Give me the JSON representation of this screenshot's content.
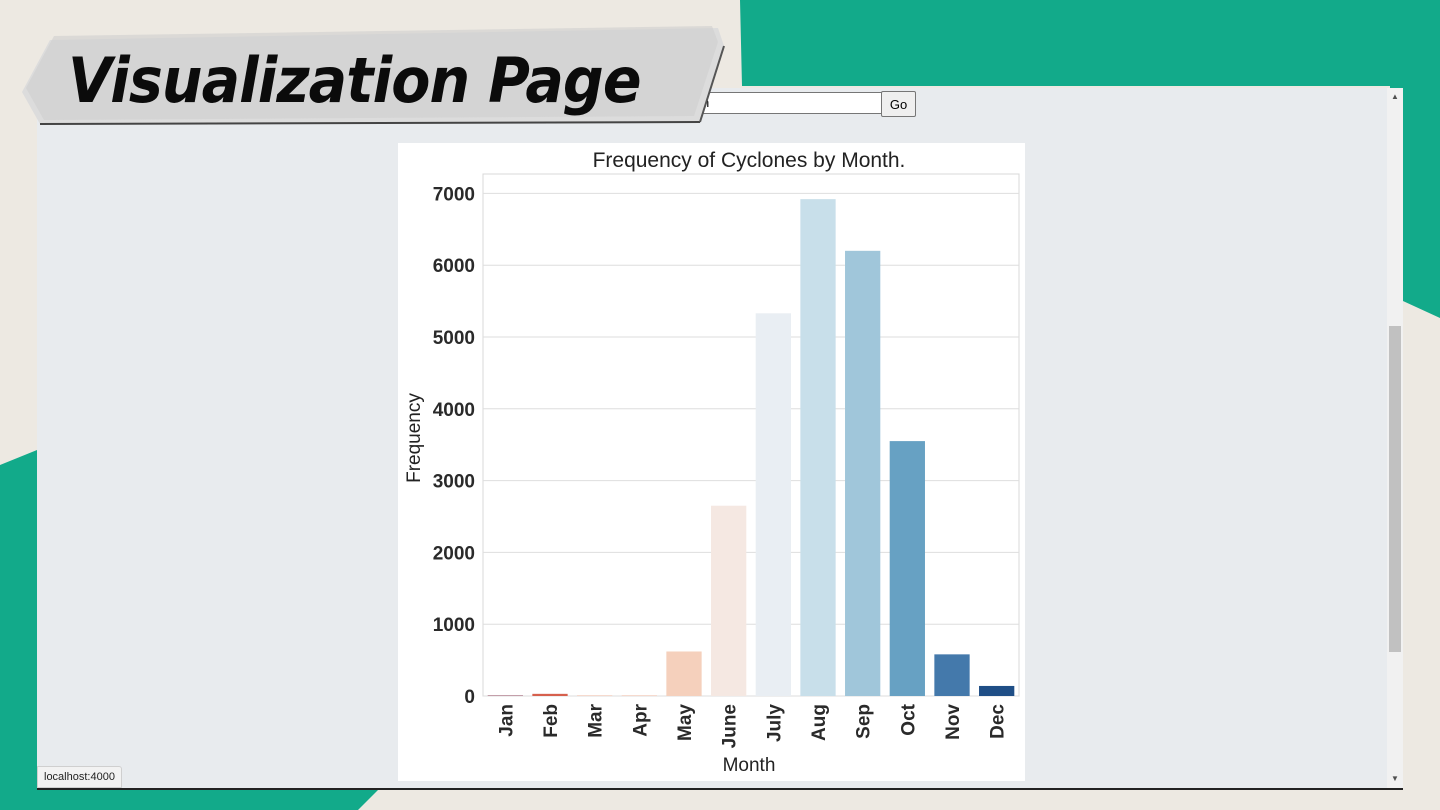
{
  "slide": {
    "title": "Visualization Page",
    "colors": {
      "background": "#ede9e2",
      "accent": "#12aa8a",
      "banner": "#d9d9d9"
    }
  },
  "browser": {
    "select_value": "n",
    "go_label": "Go",
    "status_url": "localhost:4000"
  },
  "chart_data": {
    "type": "bar",
    "title": "Frequency of Cyclones by Month.",
    "xlabel": "Month",
    "ylabel": "Frequency",
    "ylim": [
      0,
      7270
    ],
    "yticks": [
      0,
      1000,
      2000,
      3000,
      4000,
      5000,
      6000,
      7000
    ],
    "grid": true,
    "categories": [
      "Jan",
      "Feb",
      "Mar",
      "Apr",
      "May",
      "June",
      "July",
      "Aug",
      "Sep",
      "Oct",
      "Nov",
      "Dec"
    ],
    "values": [
      5,
      30,
      5,
      5,
      620,
      2650,
      5330,
      6920,
      6200,
      3550,
      580,
      140
    ],
    "colors": [
      "#67001f",
      "#d6604d",
      "#f4a582",
      "#f4a582",
      "#f5d0bc",
      "#f5e8e2",
      "#e9eef3",
      "#c8dfea",
      "#a0c6da",
      "#67a1c3",
      "#4479ab",
      "#1f4e86"
    ]
  }
}
